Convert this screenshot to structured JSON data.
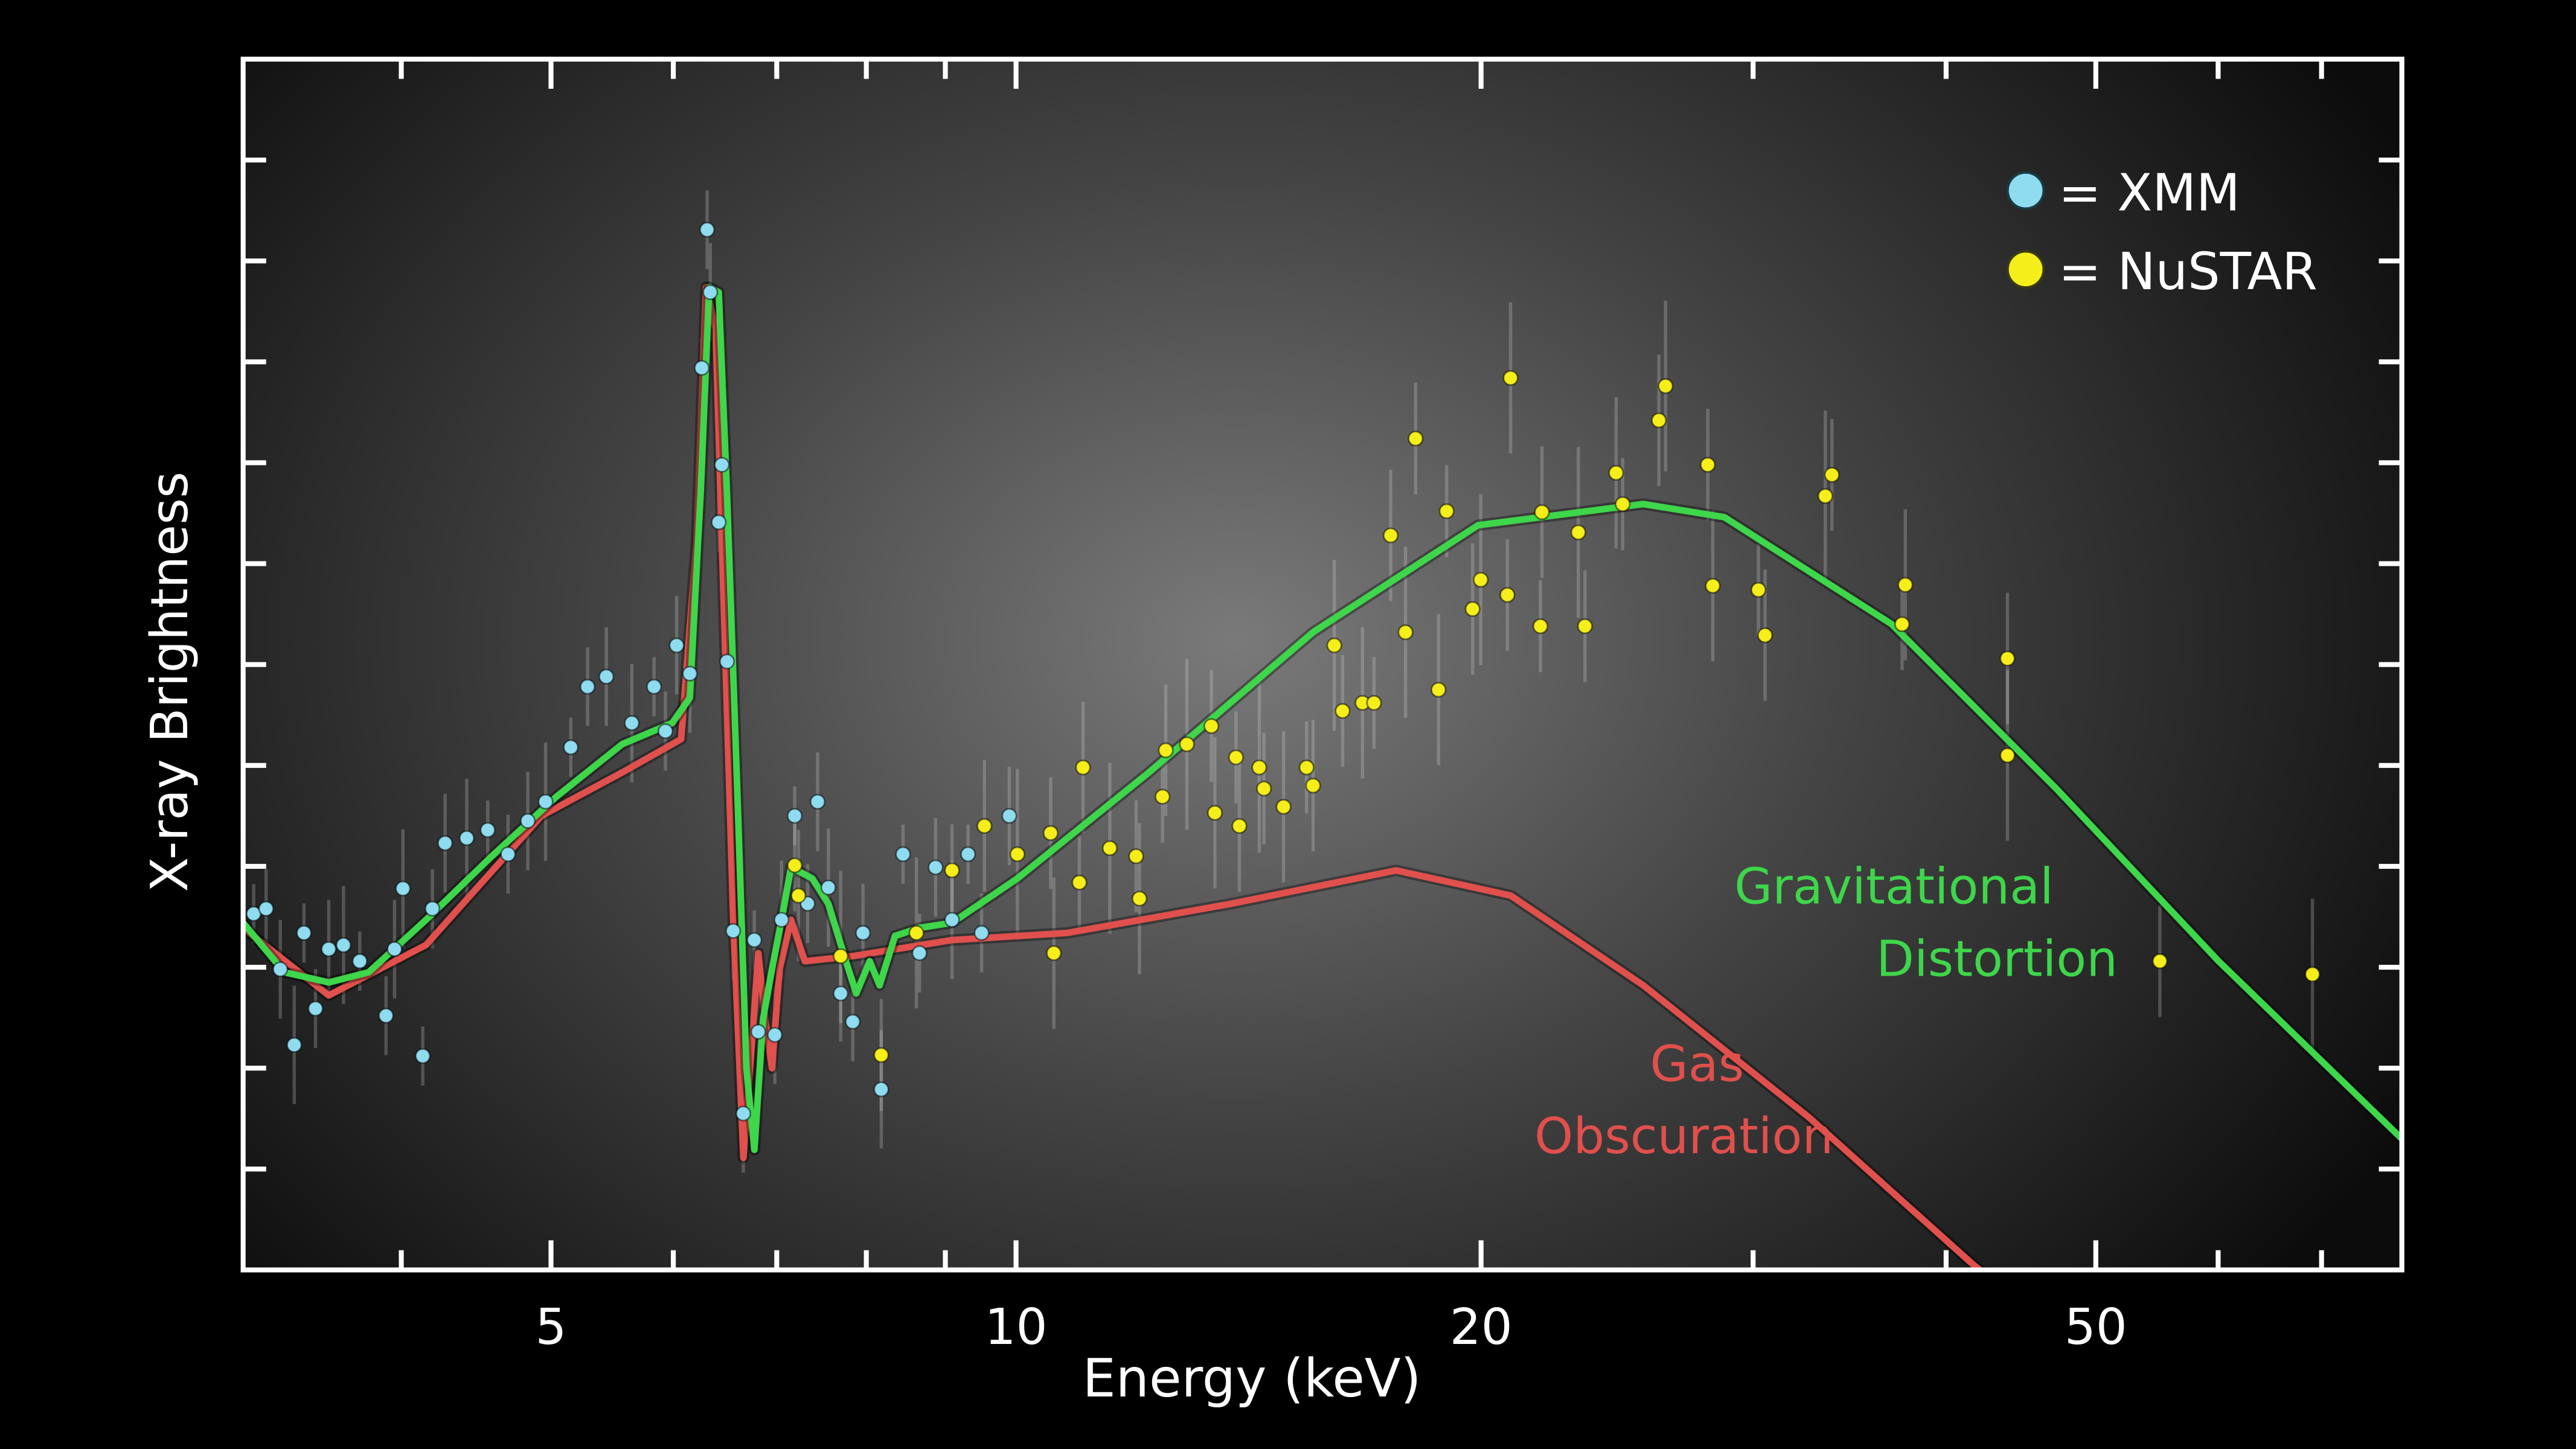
{
  "chart_data": {
    "type": "scatter",
    "title": "",
    "xlabel": "Energy (keV)",
    "ylabel": "X-ray Brightness",
    "xscale": "log",
    "xlim": [
      3.16,
      78.9
    ],
    "ylim": [
      0,
      12
    ],
    "xticks_major": [
      5,
      10,
      20,
      50
    ],
    "xtick_labels": [
      "5",
      "10",
      "20",
      "50"
    ],
    "xticks_minor": [
      4,
      6,
      7,
      8,
      9,
      30,
      40,
      60,
      70
    ],
    "yticks": [
      1,
      2,
      3,
      4,
      5,
      6,
      7,
      8,
      9,
      10,
      11
    ],
    "legend": {
      "placement": "top-right",
      "entries": [
        {
          "marker": "●",
          "label": "= XMM",
          "color": "#8fdcf0"
        },
        {
          "marker": "●",
          "label": "= NuSTAR",
          "color": "#f5ee1a"
        }
      ]
    },
    "series": [
      {
        "name": "XMM",
        "kind": "points",
        "color": "#8fdcf0",
        "x": [
          3.21,
          3.27,
          3.34,
          3.41,
          3.46,
          3.52,
          3.59,
          3.67,
          3.76,
          3.91,
          3.96,
          4.01,
          4.13,
          4.19,
          4.27,
          4.41,
          4.55,
          4.69,
          4.83,
          4.96,
          5.15,
          5.28,
          5.43,
          5.64,
          5.83,
          5.93,
          6.03,
          6.15,
          6.26,
          6.31,
          6.34,
          6.45,
          6.42,
          6.5,
          6.56,
          6.66,
          6.77,
          6.81,
          6.98,
          7.05,
          7.19,
          7.33,
          7.44,
          7.56,
          7.7,
          7.84,
          7.96,
          8.18,
          8.45,
          8.66,
          8.87,
          9.09,
          9.31,
          9.5,
          9.9
        ],
        "y": [
          3.53,
          3.58,
          2.98,
          2.23,
          3.34,
          2.59,
          3.18,
          3.22,
          3.06,
          2.52,
          3.18,
          3.78,
          2.12,
          3.58,
          4.23,
          4.28,
          4.36,
          4.12,
          4.45,
          4.64,
          5.18,
          5.78,
          5.88,
          5.42,
          5.78,
          5.34,
          6.19,
          5.91,
          8.94,
          10.31,
          9.69,
          7.98,
          7.41,
          6.03,
          3.36,
          1.55,
          3.27,
          2.36,
          2.33,
          3.47,
          4.5,
          3.63,
          4.64,
          3.79,
          2.74,
          2.46,
          3.34,
          1.79,
          4.12,
          3.14,
          3.99,
          3.47,
          4.12,
          3.34,
          4.5
        ]
      },
      {
        "name": "NuSTAR",
        "kind": "points",
        "color": "#f5ee1a",
        "x": [
          7.19,
          7.23,
          7.7,
          8.18,
          8.62,
          9.09,
          9.54,
          10.02,
          10.53,
          10.58,
          10.99,
          11.05,
          11.5,
          11.96,
          12.02,
          12.44,
          12.5,
          12.9,
          13.38,
          13.45,
          13.88,
          13.95,
          14.37,
          14.47,
          14.9,
          15.42,
          15.57,
          16.07,
          16.27,
          16.76,
          17.05,
          17.48,
          17.87,
          18.14,
          18.77,
          19.0,
          19.75,
          19.99,
          20.8,
          20.9,
          21.85,
          21.9,
          23.12,
          23.35,
          24.46,
          24.7,
          26.07,
          26.33,
          28.04,
          28.25,
          30.24,
          30.54,
          33.41,
          33.74,
          37.64,
          37.46,
          43.83,
          43.83,
          55.01,
          69.06
        ],
        "y": [
          4.01,
          3.71,
          3.11,
          2.13,
          3.34,
          3.96,
          4.4,
          4.12,
          4.33,
          3.14,
          3.84,
          4.98,
          4.18,
          4.1,
          3.68,
          4.69,
          5.15,
          5.21,
          5.39,
          4.53,
          5.08,
          4.4,
          4.98,
          4.77,
          4.59,
          4.98,
          4.8,
          6.19,
          5.54,
          5.62,
          5.62,
          7.28,
          6.32,
          8.24,
          5.75,
          7.52,
          6.55,
          6.84,
          6.69,
          8.84,
          6.38,
          7.51,
          7.31,
          6.38,
          7.9,
          7.59,
          8.42,
          8.76,
          7.98,
          6.78,
          6.74,
          6.29,
          7.67,
          7.88,
          6.79,
          6.4,
          6.06,
          5.1,
          3.06,
          2.93
        ]
      },
      {
        "name": "Gravitational Distortion",
        "kind": "line",
        "color": "#3ed64a",
        "label_lines": [
          "Gravitational",
          "Distortion"
        ],
        "x": [
          3.16,
          3.36,
          3.59,
          3.81,
          4.15,
          4.57,
          5.04,
          5.56,
          5.99,
          6.15,
          6.25,
          6.33,
          6.42,
          6.5,
          6.61,
          6.69,
          6.77,
          6.86,
          6.95,
          7.05,
          7.15,
          7.38,
          7.56,
          7.76,
          7.88,
          8.04,
          8.16,
          8.35,
          8.66,
          9.09,
          10.02,
          12.19,
          15.57,
          19.91,
          25.47,
          28.74,
          36.88,
          47.13,
          60.05,
          78.9
        ],
        "y": [
          3.44,
          2.95,
          2.85,
          2.95,
          3.47,
          4.09,
          4.69,
          5.21,
          5.42,
          5.67,
          7.7,
          9.74,
          9.69,
          7.7,
          4.45,
          2.0,
          1.19,
          2.49,
          2.98,
          3.47,
          3.99,
          3.88,
          3.63,
          3.06,
          2.74,
          3.06,
          2.82,
          3.31,
          3.39,
          3.44,
          3.88,
          4.93,
          6.32,
          7.38,
          7.59,
          7.46,
          6.4,
          4.77,
          3.06,
          1.3
        ]
      },
      {
        "name": "Gas Obscuration",
        "kind": "line",
        "color": "#e0504c",
        "label_lines": [
          "Gas",
          "Obscuration"
        ],
        "x": [
          3.16,
          3.59,
          4.15,
          4.93,
          5.56,
          6.07,
          6.21,
          6.3,
          6.39,
          6.45,
          6.56,
          6.66,
          6.74,
          6.81,
          6.88,
          6.95,
          7.03,
          7.15,
          7.3,
          7.84,
          9.09,
          10.79,
          13.78,
          17.62,
          20.9,
          25.47,
          32.62,
          41.66,
          47.13
        ],
        "y": [
          3.39,
          2.72,
          3.22,
          4.5,
          4.93,
          5.26,
          7.21,
          9.74,
          9.33,
          7.21,
          3.47,
          1.11,
          2.17,
          3.14,
          2.49,
          2.0,
          2.98,
          3.47,
          3.06,
          3.11,
          3.27,
          3.34,
          3.63,
          3.96,
          3.71,
          2.82,
          1.51,
          0.05,
          -0.6
        ]
      }
    ]
  }
}
